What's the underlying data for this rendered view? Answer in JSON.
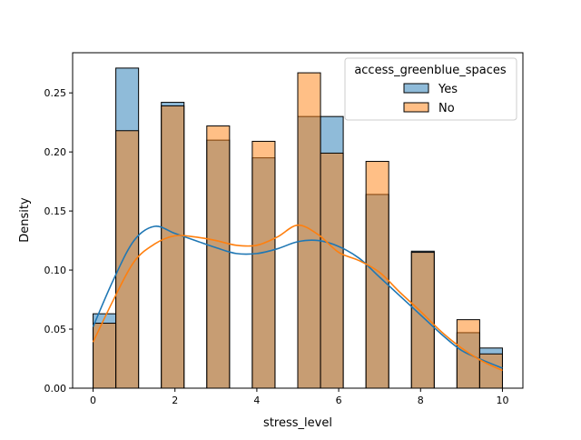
{
  "chart_data": {
    "type": "histogram",
    "title": "",
    "xlabel": "stress_level",
    "ylabel": "Density",
    "xlim": [
      -0.5,
      10.5
    ],
    "ylim": [
      0,
      0.284
    ],
    "xticks": [
      0,
      2,
      4,
      6,
      8,
      10
    ],
    "yticks": [
      0.0,
      0.05,
      0.1,
      0.15,
      0.2,
      0.25
    ],
    "ytick_labels": [
      "0.00",
      "0.05",
      "0.10",
      "0.15",
      "0.20",
      "0.25"
    ],
    "bin_range": [
      0,
      10
    ],
    "bin_count": 18,
    "grid": false,
    "legend": {
      "title": "access_greenblue_spaces",
      "placement": "top-right"
    },
    "series": [
      {
        "name": "Yes",
        "color": "#1f77b4",
        "bar_values": [
          0.063,
          0.271,
          0,
          0.242,
          0,
          0.21,
          0,
          0.195,
          0,
          0.23,
          0.23,
          0,
          0.164,
          0,
          0.116,
          0,
          0.047,
          0.034
        ],
        "kde_x": [
          0,
          0.5,
          1,
          1.5,
          2,
          2.5,
          3,
          3.5,
          4,
          4.5,
          5,
          5.5,
          6,
          6.5,
          7,
          7.5,
          8,
          8.5,
          9,
          9.5,
          10
        ],
        "kde_y": [
          0.052,
          0.092,
          0.125,
          0.137,
          0.131,
          0.125,
          0.119,
          0.114,
          0.114,
          0.118,
          0.124,
          0.125,
          0.12,
          0.11,
          0.094,
          0.078,
          0.062,
          0.046,
          0.032,
          0.024,
          0.017
        ]
      },
      {
        "name": "No",
        "color": "#ff7f0e",
        "bar_values": [
          0.055,
          0.218,
          0,
          0.239,
          0,
          0.222,
          0,
          0.209,
          0,
          0.267,
          0.199,
          0,
          0.192,
          0,
          0.115,
          0,
          0.058,
          0.029
        ],
        "kde_x": [
          0,
          0.5,
          1,
          1.5,
          2,
          2.5,
          3,
          3.5,
          4,
          4.5,
          5,
          5.5,
          6,
          6.5,
          7,
          7.5,
          8,
          8.5,
          9,
          9.5,
          10
        ],
        "kde_y": [
          0.039,
          0.075,
          0.107,
          0.122,
          0.129,
          0.128,
          0.125,
          0.121,
          0.121,
          0.128,
          0.138,
          0.13,
          0.115,
          0.108,
          0.098,
          0.081,
          0.065,
          0.048,
          0.034,
          0.023,
          0.015
        ]
      }
    ]
  }
}
